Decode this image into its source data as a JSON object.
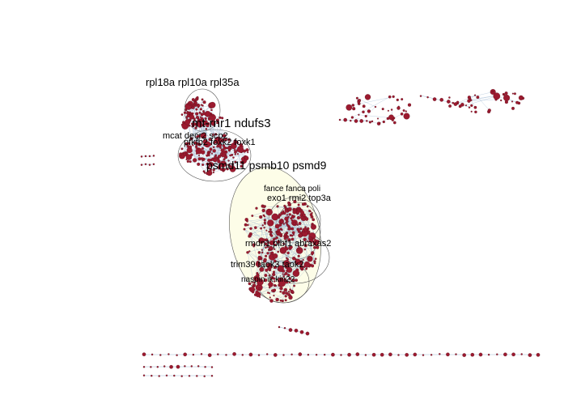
{
  "colors": {
    "node": "#9b1a2f",
    "edge": "#9fb8d3",
    "cluster_outline": "#555555",
    "cluster_fill": "#fdfde6",
    "label": "#000000"
  },
  "cluster_labels": [
    "rpl18a rpl10a rpl35a",
    "mt-rnr1 ndufs3",
    "mcat decr2 scp2",
    "pfkfb2 foxk2 foxk1",
    "psmd11 psmb10 psmd9",
    "fance fanca poli",
    "exo1 rmi2 top3a",
    "rmdn1 plbf1 abraxas2",
    "trim39 taok3 taok2",
    "naspin ik kin22"
  ]
}
